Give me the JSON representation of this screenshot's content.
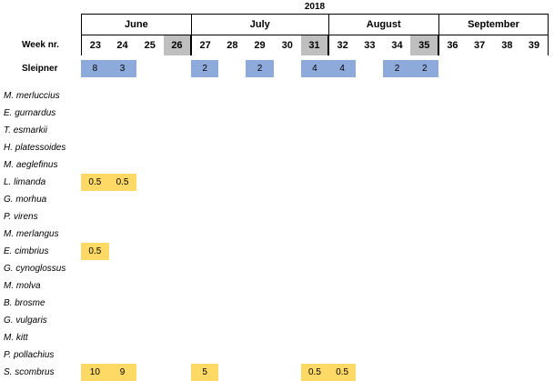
{
  "year": "2018",
  "months": [
    {
      "name": "June",
      "span": 4
    },
    {
      "name": "July",
      "span": 5
    },
    {
      "name": "August",
      "span": 4
    },
    {
      "name": "September",
      "span": 4
    }
  ],
  "week_label": "Week nr.",
  "weeks": [
    "23",
    "24",
    "25",
    "26",
    "27",
    "28",
    "29",
    "30",
    "31",
    "32",
    "33",
    "34",
    "35",
    "36",
    "37",
    "38",
    "39"
  ],
  "grey_weeks": [
    "26",
    "31",
    "35"
  ],
  "sleipner": {
    "label": "Sleipner",
    "values": [
      "8",
      "3",
      "",
      "",
      "2",
      "",
      "2",
      "",
      "4",
      "4",
      "",
      "2",
      "2",
      "",
      "",
      "",
      ""
    ]
  },
  "species": [
    {
      "name": "M. merluccius",
      "values": [
        "",
        "",
        "",
        "",
        "",
        "",
        "",
        "",
        "",
        "",
        "",
        "",
        "",
        "",
        "",
        "",
        ""
      ]
    },
    {
      "name": "E. gurnardus",
      "values": [
        "",
        "",
        "",
        "",
        "",
        "",
        "",
        "",
        "",
        "",
        "",
        "",
        "",
        "",
        "",
        "",
        ""
      ]
    },
    {
      "name": "T. esmarkii",
      "values": [
        "",
        "",
        "",
        "",
        "",
        "",
        "",
        "",
        "",
        "",
        "",
        "",
        "",
        "",
        "",
        "",
        ""
      ]
    },
    {
      "name": "H. platessoides",
      "values": [
        "",
        "",
        "",
        "",
        "",
        "",
        "",
        "",
        "",
        "",
        "",
        "",
        "",
        "",
        "",
        "",
        ""
      ]
    },
    {
      "name": "M. aeglefinus",
      "values": [
        "",
        "",
        "",
        "",
        "",
        "",
        "",
        "",
        "",
        "",
        "",
        "",
        "",
        "",
        "",
        "",
        ""
      ]
    },
    {
      "name": "L. limanda",
      "values": [
        "0.5",
        "0.5",
        "",
        "",
        "",
        "",
        "",
        "",
        "",
        "",
        "",
        "",
        "",
        "",
        "",
        "",
        ""
      ]
    },
    {
      "name": "G. morhua",
      "values": [
        "",
        "",
        "",
        "",
        "",
        "",
        "",
        "",
        "",
        "",
        "",
        "",
        "",
        "",
        "",
        "",
        ""
      ]
    },
    {
      "name": "P. virens",
      "values": [
        "",
        "",
        "",
        "",
        "",
        "",
        "",
        "",
        "",
        "",
        "",
        "",
        "",
        "",
        "",
        "",
        ""
      ]
    },
    {
      "name": "M. merlangus",
      "values": [
        "",
        "",
        "",
        "",
        "",
        "",
        "",
        "",
        "",
        "",
        "",
        "",
        "",
        "",
        "",
        "",
        ""
      ]
    },
    {
      "name": "E. cimbrius",
      "values": [
        "0.5",
        "",
        "",
        "",
        "",
        "",
        "",
        "",
        "",
        "",
        "",
        "",
        "",
        "",
        "",
        "",
        ""
      ]
    },
    {
      "name": "G. cynoglossus",
      "values": [
        "",
        "",
        "",
        "",
        "",
        "",
        "",
        "",
        "",
        "",
        "",
        "",
        "",
        "",
        "",
        "",
        ""
      ]
    },
    {
      "name": "M. molva",
      "values": [
        "",
        "",
        "",
        "",
        "",
        "",
        "",
        "",
        "",
        "",
        "",
        "",
        "",
        "",
        "",
        "",
        ""
      ]
    },
    {
      "name": "B. brosme",
      "values": [
        "",
        "",
        "",
        "",
        "",
        "",
        "",
        "",
        "",
        "",
        "",
        "",
        "",
        "",
        "",
        "",
        ""
      ]
    },
    {
      "name": "G. vulgaris",
      "values": [
        "",
        "",
        "",
        "",
        "",
        "",
        "",
        "",
        "",
        "",
        "",
        "",
        "",
        "",
        "",
        "",
        ""
      ]
    },
    {
      "name": "M. kitt",
      "values": [
        "",
        "",
        "",
        "",
        "",
        "",
        "",
        "",
        "",
        "",
        "",
        "",
        "",
        "",
        "",
        "",
        ""
      ]
    },
    {
      "name": "P. pollachius",
      "values": [
        "",
        "",
        "",
        "",
        "",
        "",
        "",
        "",
        "",
        "",
        "",
        "",
        "",
        "",
        "",
        "",
        ""
      ]
    },
    {
      "name": "S. scombrus",
      "values": [
        "10",
        "9",
        "",
        "",
        "5",
        "",
        "",
        "",
        "0.5",
        "0.5",
        "",
        "",
        "",
        "",
        "",
        "",
        ""
      ]
    }
  ],
  "colors": {
    "sleipner": "#8eaadb",
    "species": "#ffd966",
    "grey": "#bfbfbf"
  }
}
